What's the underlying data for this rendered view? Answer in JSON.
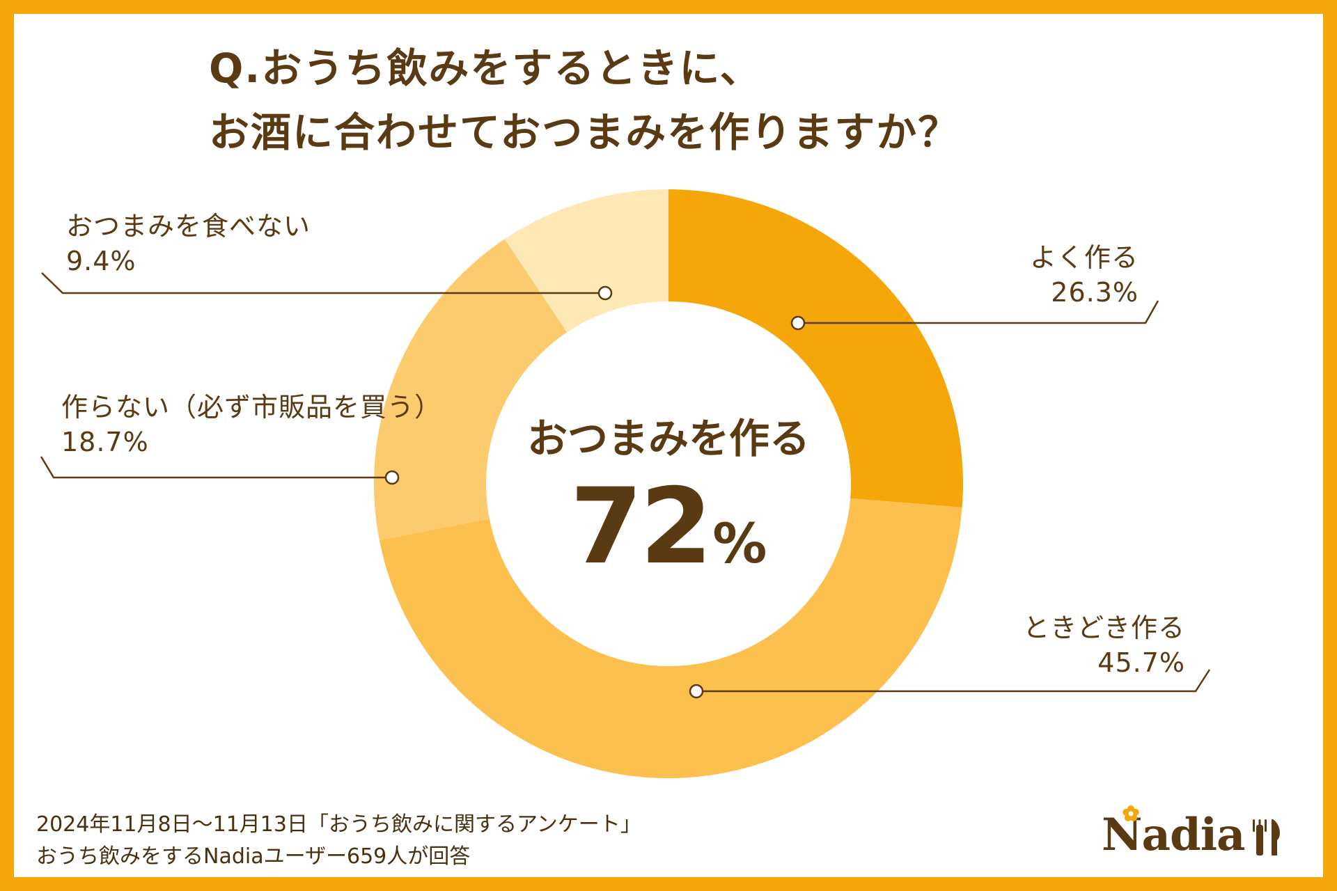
{
  "chart_data": {
    "type": "pie",
    "title": "Q.おうち飲みをするときに、お酒に合わせておつまみを作りますか？",
    "title_lines": [
      "Q.おうち飲みをするときに、",
      "お酒に合わせておつまみを作りますか？"
    ],
    "categories": [
      "よく作る",
      "ときどき作る",
      "作らない（必ず市販品を買う）",
      "おつまみを食べない"
    ],
    "values": [
      26.3,
      45.7,
      18.7,
      9.4
    ],
    "value_labels": [
      "26.3%",
      "45.7%",
      "18.7%",
      "9.4%"
    ],
    "colors": [
      "#F5A70A",
      "#FBC04D",
      "#FCCB6D",
      "#FDE8B6"
    ],
    "donut": true,
    "center_label": "おつまみを作る",
    "center_value": "72",
    "center_unit": "%"
  },
  "footer": {
    "line1": "2024年11月8日〜11月13日「おうち飲みに関するアンケート」",
    "line2": "おうち飲みをするNadiaユーザー659人が回答"
  },
  "logo": {
    "text": "Nadia",
    "icon": "fork-knife-icon"
  },
  "theme": {
    "frame_color": "#F5A70A",
    "text_color": "#5A3A12"
  }
}
